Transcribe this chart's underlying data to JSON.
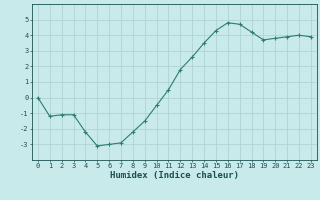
{
  "x": [
    0,
    1,
    2,
    3,
    4,
    5,
    6,
    7,
    8,
    9,
    10,
    11,
    12,
    13,
    14,
    15,
    16,
    17,
    18,
    19,
    20,
    21,
    22,
    23
  ],
  "y": [
    0,
    -1.2,
    -1.1,
    -1.1,
    -2.2,
    -3.1,
    -3.0,
    -2.9,
    -2.2,
    -1.5,
    -0.5,
    0.5,
    1.8,
    2.6,
    3.5,
    4.3,
    4.8,
    4.7,
    4.2,
    3.7,
    3.8,
    3.9,
    4.0,
    3.9
  ],
  "line_color": "#2e7d6e",
  "marker": "+",
  "marker_size": 3,
  "marker_linewidth": 0.8,
  "line_width": 0.8,
  "bg_color": "#c8eaea",
  "grid_color": "#b0d4d4",
  "xlabel": "Humidex (Indice chaleur)",
  "xlabel_color": "#1a5050",
  "tick_color": "#1a5050",
  "ylim": [
    -4,
    6
  ],
  "xlim": [
    -0.5,
    23.5
  ],
  "yticks": [
    -3,
    -2,
    -1,
    0,
    1,
    2,
    3,
    4,
    5
  ],
  "xticks": [
    0,
    1,
    2,
    3,
    4,
    5,
    6,
    7,
    8,
    9,
    10,
    11,
    12,
    13,
    14,
    15,
    16,
    17,
    18,
    19,
    20,
    21,
    22,
    23
  ],
  "tick_fontsize": 5.0,
  "xlabel_fontsize": 6.5
}
